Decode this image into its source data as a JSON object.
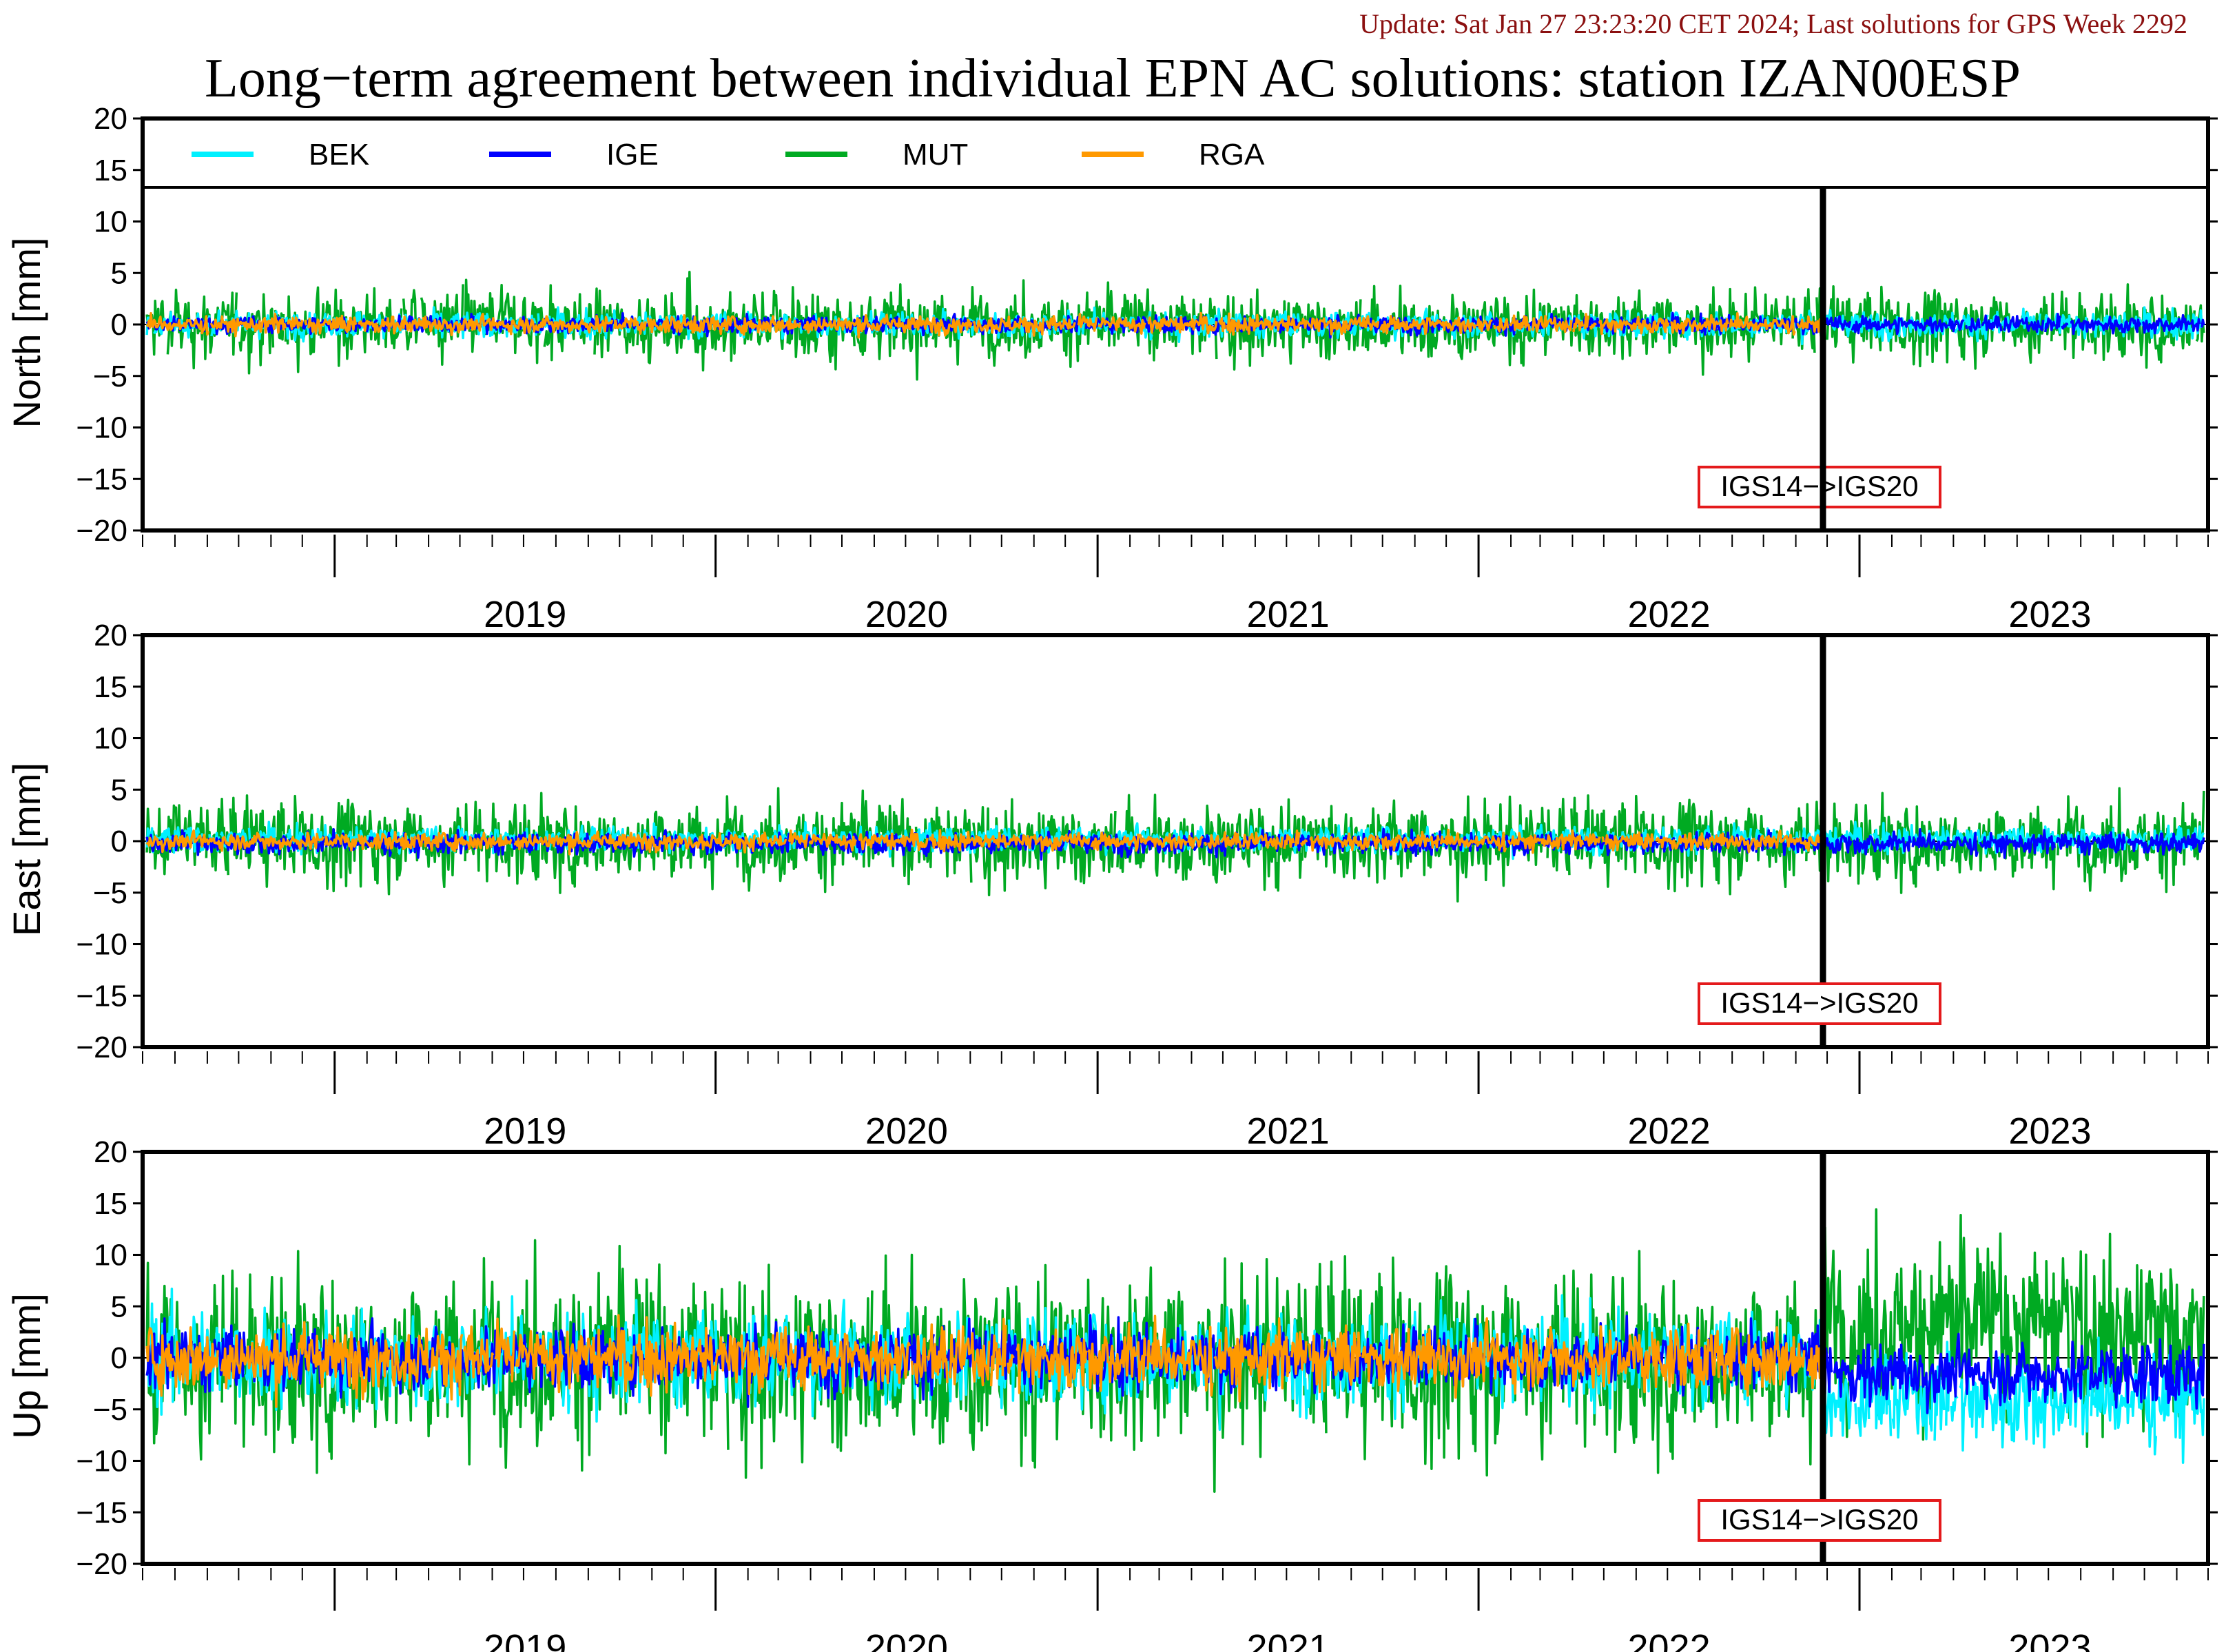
{
  "update_text": "Update: Sat Jan 27 23:23:20 CET 2024; Last solutions for GPS Week 2292",
  "chart_data": {
    "type": "line",
    "title": "Long−term agreement between individual EPN AC solutions: station IZAN00ESP",
    "x_ticks": [
      "2019",
      "2020",
      "2021",
      "2022",
      "2023"
    ],
    "xlim": [
      "2018-07-01",
      "2023-12-01"
    ],
    "ylim": [
      -20,
      20
    ],
    "y_ticks": [
      "20",
      "15",
      "10",
      "5",
      "0",
      "−5",
      "−10",
      "−15",
      "−20"
    ],
    "legend": {
      "position": "top",
      "entries": [
        {
          "name": "BEK",
          "color": "#00f0ff"
        },
        {
          "name": "IGE",
          "color": "#0000ff"
        },
        {
          "name": "MUT",
          "color": "#00aa22"
        },
        {
          "name": "RGA",
          "color": "#ff9900"
        }
      ]
    },
    "event": {
      "date": "2022-11-27",
      "label": "IGS14−>IGS20"
    },
    "panels": [
      {
        "ylabel": "North [mm]",
        "series_noise_mm": {
          "BEK": 0.6,
          "IGE": 0.4,
          "MUT": 1.5,
          "RGA": 0.4
        },
        "series_offset_mm": {
          "BEK": 0.0,
          "IGE": 0.0,
          "MUT": 0.0,
          "RGA": 0.0
        }
      },
      {
        "ylabel": "East [mm]",
        "series_noise_mm": {
          "BEK": 0.6,
          "IGE": 0.5,
          "MUT": 1.8,
          "RGA": 0.4
        },
        "series_offset_mm": {
          "BEK": 0.2,
          "IGE": -0.2,
          "MUT": 0.0,
          "RGA": 0.0
        }
      },
      {
        "ylabel": "Up [mm]",
        "series_noise_mm": {
          "BEK": 2.2,
          "IGE": 1.5,
          "MUT": 4.0,
          "RGA": 1.5
        },
        "series_offset_mm": {
          "BEK": 0.0,
          "IGE": 0.0,
          "MUT": 0.0,
          "RGA": 0.0
        },
        "post_event_offset_mm": {
          "BEK": -4.0,
          "IGE": -1.5,
          "MUT": 3.0
        }
      }
    ]
  }
}
